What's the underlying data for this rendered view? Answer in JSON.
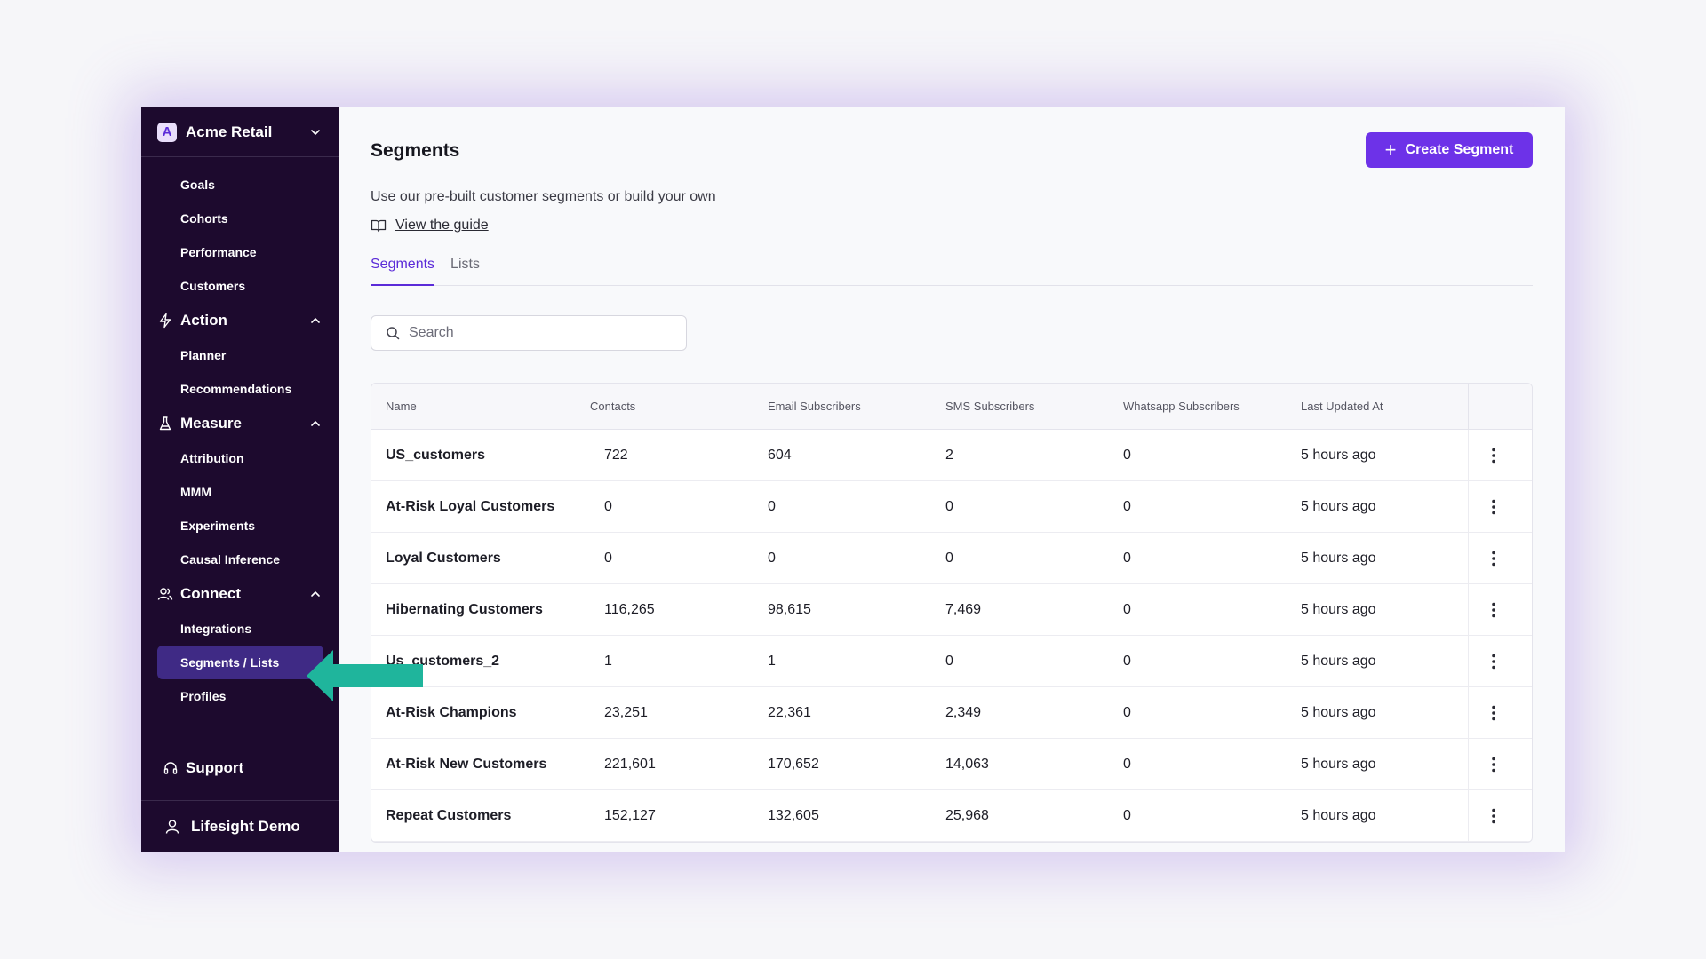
{
  "workspace": {
    "logo_letter": "A",
    "name": "Acme Retail"
  },
  "sidebar": {
    "top_items": [
      "Goals",
      "Cohorts",
      "Performance",
      "Customers"
    ],
    "groups": [
      {
        "label": "Action",
        "icon": "bolt-icon",
        "items": [
          "Planner",
          "Recommendations"
        ]
      },
      {
        "label": "Measure",
        "icon": "flask-icon",
        "items": [
          "Attribution",
          "MMM",
          "Experiments",
          "Causal Inference"
        ]
      },
      {
        "label": "Connect",
        "icon": "users-icon",
        "items": [
          "Integrations",
          "Segments / Lists",
          "Profiles"
        ]
      }
    ],
    "active_item": "Segments / Lists",
    "support": "Support",
    "user": "Lifesight Demo"
  },
  "header": {
    "title": "Segments",
    "create_button": "Create Segment",
    "subtitle": "Use our pre-built customer segments or build your own",
    "guide_link": "View the guide"
  },
  "tabs": [
    {
      "label": "Segments",
      "active": true
    },
    {
      "label": "Lists",
      "active": false
    }
  ],
  "search": {
    "placeholder": "Search"
  },
  "table": {
    "columns": [
      "Name",
      "Contacts",
      "Email Subscribers",
      "SMS Subscribers",
      "Whatsapp Subscribers",
      "Last Updated At"
    ],
    "rows": [
      [
        "US_customers",
        "722",
        "604",
        "2",
        "0",
        "5 hours ago"
      ],
      [
        "At-Risk Loyal Customers",
        "0",
        "0",
        "0",
        "0",
        "5 hours ago"
      ],
      [
        "Loyal Customers",
        "0",
        "0",
        "0",
        "0",
        "5 hours ago"
      ],
      [
        "Hibernating Customers",
        "116,265",
        "98,615",
        "7,469",
        "0",
        "5 hours ago"
      ],
      [
        "Us_customers_2",
        "1",
        "1",
        "0",
        "0",
        "5 hours ago"
      ],
      [
        "At-Risk Champions",
        "23,251",
        "22,361",
        "2,349",
        "0",
        "5 hours ago"
      ],
      [
        "At-Risk New Customers",
        "221,601",
        "170,652",
        "14,063",
        "0",
        "5 hours ago"
      ],
      [
        "Repeat Customers",
        "152,127",
        "132,605",
        "25,968",
        "0",
        "5 hours ago"
      ]
    ]
  },
  "colors": {
    "sidebar_bg": "#1d0a2e",
    "active_item_bg": "#3f2a85",
    "accent": "#6d32e8",
    "callout_arrow": "#1fb59c"
  }
}
